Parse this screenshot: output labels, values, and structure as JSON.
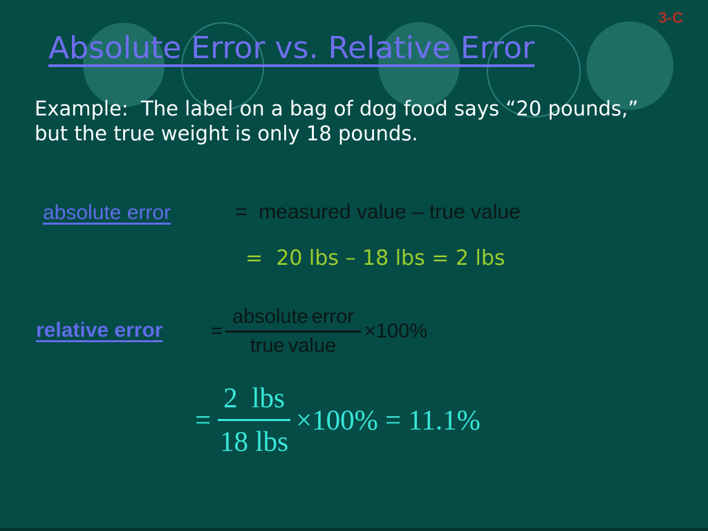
{
  "slide": {
    "corner_tag": "3-C",
    "title": "Absolute Error vs. Relative Error",
    "example": {
      "line1": "Example:  The label on a bag of dog food says “20 pounds,”",
      "line2": "but the true weight is only 18 pounds."
    },
    "absolute_error": {
      "term": "absolute error",
      "definition": "=  measured value – true value",
      "calculation": "=  20 lbs – 18 lbs = 2 lbs"
    },
    "relative_error": {
      "term": "relative error",
      "formula": {
        "equals": "=",
        "numerator": "absolute error",
        "denominator": "true value",
        "multiplier": "×100%"
      },
      "result": {
        "equals": "=",
        "numerator": "2  lbs",
        "denominator": "18 lbs",
        "suffix": "×100% = 11.1%"
      }
    },
    "colors": {
      "background": "#054b46",
      "circle_fill": "#1e6e66",
      "circle_stroke": "#2c7d75",
      "title_purple": "#6f6fee",
      "corner_tag_red": "#b03128",
      "body_white": "#fbfffe",
      "term_blue": "#5f6de8",
      "formula_black": "#0b1715",
      "calculation_green": "#9ccd2e",
      "result_cyan": "#38e8da"
    }
  }
}
